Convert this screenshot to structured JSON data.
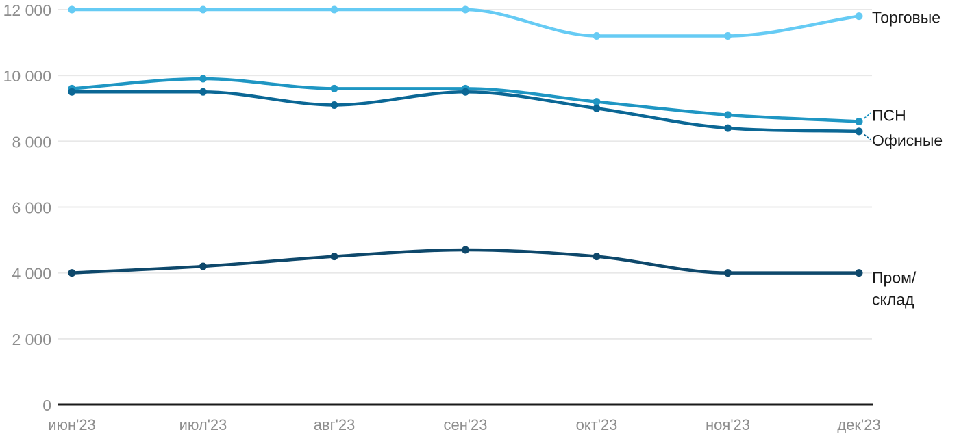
{
  "chart_data": {
    "type": "line",
    "title": "",
    "xlabel": "",
    "ylabel": "",
    "grid": true,
    "legend_position": "right-end-labels",
    "categories": [
      "июн'23",
      "июл'23",
      "авг'23",
      "сен'23",
      "окт'23",
      "ноя'23",
      "дек'23"
    ],
    "ylim": [
      0,
      12000
    ],
    "yticks": [
      {
        "value": 0,
        "label": "0"
      },
      {
        "value": 2000,
        "label": "2 000"
      },
      {
        "value": 4000,
        "label": "4 000"
      },
      {
        "value": 6000,
        "label": "6 000"
      },
      {
        "value": 8000,
        "label": "8 000"
      },
      {
        "value": 10000,
        "label": "10 000"
      },
      {
        "value": 12000,
        "label": "12 000"
      }
    ],
    "series": [
      {
        "id": "torgovye",
        "name": "Торговые",
        "values": [
          12000,
          12000,
          12000,
          12000,
          11200,
          11200,
          11800
        ],
        "color": "#66CBF4",
        "end_label": {
          "lines": [
            "Торговые"
          ],
          "dy": 2,
          "connector": null
        }
      },
      {
        "id": "psn",
        "name": "ПСН",
        "values": [
          9600,
          9900,
          9600,
          9600,
          9200,
          8800,
          8600
        ],
        "color": "#1F96C3",
        "end_label": {
          "lines": [
            "ПСН"
          ],
          "dy": -9,
          "connector": "up"
        }
      },
      {
        "id": "ofisnye",
        "name": "Офисные",
        "values": [
          9500,
          9500,
          9100,
          9500,
          9000,
          8400,
          8300
        ],
        "color": "#0B6795",
        "end_label": {
          "lines": [
            "Офисные"
          ],
          "dy": 13,
          "connector": "down"
        }
      },
      {
        "id": "prom-sklad",
        "name": "Пром/склад",
        "values": [
          4000,
          4200,
          4500,
          4700,
          4500,
          4000,
          4000
        ],
        "color": "#0E486B",
        "end_label": {
          "lines": [
            "Пром/",
            "склад"
          ],
          "dy": 7,
          "connector": null
        }
      }
    ],
    "style_colors": {
      "grid": "#E8E8E8",
      "zero_axis": "#1A1A1A",
      "tick_text": "#8D8D8D",
      "label_text": "#1A1A1A",
      "background": "#FFFFFF"
    }
  }
}
